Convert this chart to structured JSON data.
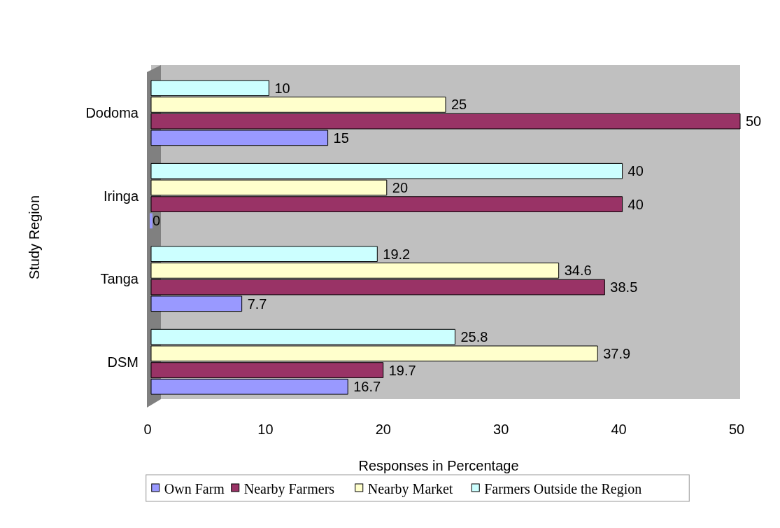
{
  "chart_data": {
    "type": "bar",
    "orientation": "horizontal",
    "xlabel": "Responses in Percentage",
    "ylabel": "Study Region",
    "categories": [
      "Dodoma",
      "Iringa",
      "Tanga",
      "DSM"
    ],
    "series": [
      {
        "name": "Own Farm",
        "color": "#9999ff",
        "values": [
          15,
          0,
          7.7,
          16.7
        ]
      },
      {
        "name": "Nearby Farmers",
        "color": "#993366",
        "values": [
          50,
          40,
          38.5,
          19.7
        ]
      },
      {
        "name": "Nearby Market",
        "color": "#ffffcc",
        "values": [
          25,
          20,
          34.6,
          37.9
        ]
      },
      {
        "name": "Farmers Outside the Region",
        "color": "#ccffff",
        "values": [
          10,
          40,
          19.2,
          25.8
        ]
      }
    ],
    "xlim": [
      0,
      50
    ],
    "xticks": [
      0,
      10,
      20,
      30,
      40,
      50
    ],
    "data_labels": true,
    "legend": "bottom"
  }
}
